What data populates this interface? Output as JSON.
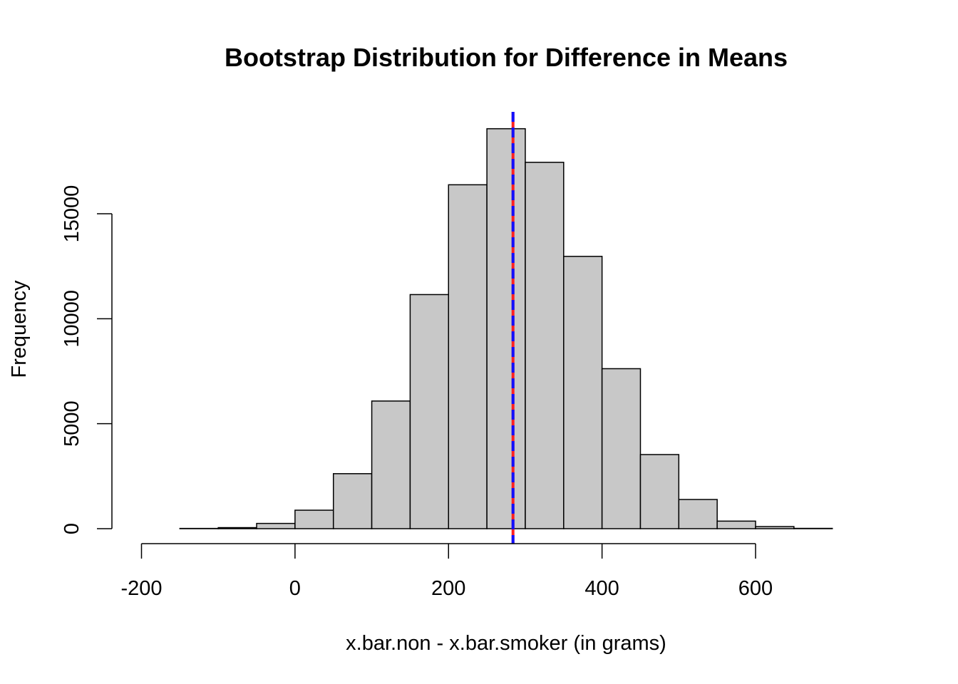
{
  "chart_data": {
    "type": "bar",
    "title": "Bootstrap Distribution for Difference in Means",
    "xlabel": "x.bar.non - x.bar.smoker (in grams)",
    "ylabel": "Frequency",
    "bin_width": 50,
    "bins": [
      {
        "start": -200,
        "end": -150,
        "count": 0
      },
      {
        "start": -150,
        "end": -100,
        "count": 12
      },
      {
        "start": -100,
        "end": -50,
        "count": 50
      },
      {
        "start": -50,
        "end": 0,
        "count": 250
      },
      {
        "start": 0,
        "end": 50,
        "count": 880
      },
      {
        "start": 50,
        "end": 100,
        "count": 2620
      },
      {
        "start": 100,
        "end": 150,
        "count": 6080
      },
      {
        "start": 150,
        "end": 200,
        "count": 11150
      },
      {
        "start": 200,
        "end": 250,
        "count": 16380
      },
      {
        "start": 250,
        "end": 300,
        "count": 19050
      },
      {
        "start": 300,
        "end": 350,
        "count": 17450
      },
      {
        "start": 350,
        "end": 400,
        "count": 12970
      },
      {
        "start": 400,
        "end": 450,
        "count": 7620
      },
      {
        "start": 450,
        "end": 500,
        "count": 3530
      },
      {
        "start": 500,
        "end": 550,
        "count": 1390
      },
      {
        "start": 550,
        "end": 600,
        "count": 360
      },
      {
        "start": 600,
        "end": 650,
        "count": 100
      },
      {
        "start": 650,
        "end": 700,
        "count": 15
      },
      {
        "start": 700,
        "end": 750,
        "count": 0
      }
    ],
    "xlim": [
      -200,
      750
    ],
    "ylim": [
      0,
      20000
    ],
    "x_ticks": [
      -200,
      0,
      200,
      400,
      600
    ],
    "x_tick_labels": [
      "-200",
      "0",
      "200",
      "400",
      "600"
    ],
    "y_ticks": [
      0,
      5000,
      10000,
      15000
    ],
    "y_tick_labels": [
      "0",
      "5000",
      "10000",
      "15000"
    ],
    "grid": false,
    "bar_color": "#c8c8c8",
    "vlines": [
      {
        "x": 284,
        "color": "#ff2020",
        "style": "solid"
      },
      {
        "x": 284,
        "color": "#1010ff",
        "style": "dashed"
      }
    ]
  }
}
